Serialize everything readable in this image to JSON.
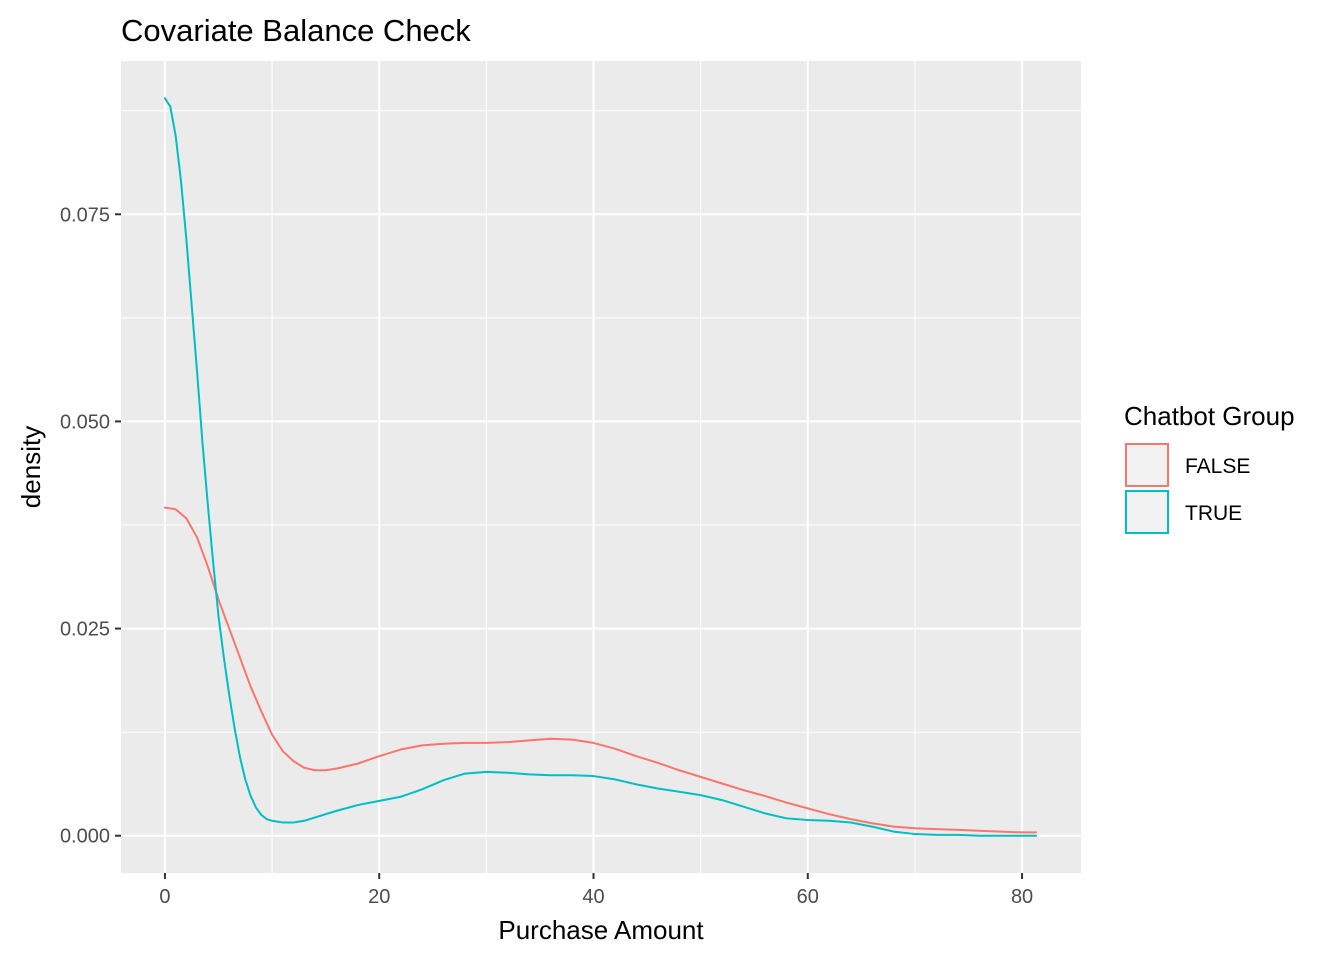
{
  "chart_data": {
    "type": "line",
    "title": "Covariate Balance Check",
    "xlabel": "Purchase Amount",
    "ylabel": "density",
    "xlim": [
      -4.1,
      85.5
    ],
    "ylim": [
      -0.0045,
      0.0935
    ],
    "x_ticks": [
      0,
      20,
      40,
      60,
      80
    ],
    "y_ticks": [
      0.0,
      0.025,
      0.05,
      0.075
    ],
    "x_tick_labels": [
      "0",
      "20",
      "40",
      "60",
      "80"
    ],
    "y_tick_labels": [
      "0.000",
      "0.025",
      "0.050",
      "0.075"
    ],
    "grid": true,
    "legend": {
      "title": "Chatbot Group",
      "position": "right"
    },
    "series": [
      {
        "name": "FALSE",
        "color": "#F8766D",
        "x": [
          0,
          1,
          2,
          3,
          4,
          5,
          6,
          7,
          8,
          9,
          10,
          11,
          12,
          13,
          14,
          15,
          16,
          18,
          20,
          22,
          24,
          26,
          28,
          30,
          32,
          34,
          36,
          38,
          40,
          42,
          44,
          46,
          48,
          50,
          52,
          54,
          56,
          58,
          60,
          62,
          64,
          66,
          68,
          70,
          72,
          74,
          76,
          78,
          80,
          81.3
        ],
        "y": [
          0.0396,
          0.0394,
          0.0383,
          0.036,
          0.0325,
          0.0285,
          0.025,
          0.0215,
          0.018,
          0.015,
          0.0122,
          0.0102,
          0.009,
          0.0082,
          0.0079,
          0.0079,
          0.0081,
          0.0087,
          0.0096,
          0.0104,
          0.0109,
          0.0111,
          0.0112,
          0.0112,
          0.0113,
          0.0115,
          0.0117,
          0.0116,
          0.0112,
          0.0105,
          0.0096,
          0.0088,
          0.0079,
          0.0071,
          0.0063,
          0.0055,
          0.0048,
          0.004,
          0.0033,
          0.0026,
          0.002,
          0.0015,
          0.0011,
          0.0009,
          0.0008,
          0.0007,
          0.0006,
          0.0005,
          0.0004,
          0.0004
        ]
      },
      {
        "name": "TRUE",
        "color": "#00BFC4",
        "x": [
          0,
          0.5,
          1,
          1.5,
          2,
          2.5,
          3,
          3.5,
          4,
          4.5,
          5,
          5.5,
          6,
          6.5,
          7,
          7.5,
          8,
          8.5,
          9,
          9.5,
          10,
          11,
          12,
          13,
          14,
          16,
          18,
          20,
          22,
          24,
          26,
          28,
          30,
          32,
          34,
          36,
          38,
          40,
          42,
          44,
          46,
          48,
          50,
          52,
          54,
          56,
          58,
          60,
          62,
          64,
          66,
          68,
          70,
          72,
          74,
          76,
          78,
          80,
          81.3
        ],
        "y": [
          0.089,
          0.088,
          0.0845,
          0.079,
          0.072,
          0.064,
          0.056,
          0.0475,
          0.04,
          0.033,
          0.0265,
          0.0215,
          0.017,
          0.013,
          0.0095,
          0.0068,
          0.0048,
          0.0034,
          0.0025,
          0.002,
          0.0018,
          0.0016,
          0.0016,
          0.0018,
          0.0022,
          0.003,
          0.0037,
          0.0042,
          0.0047,
          0.0056,
          0.0067,
          0.0075,
          0.0077,
          0.0076,
          0.0074,
          0.0073,
          0.0073,
          0.0072,
          0.0068,
          0.0062,
          0.0057,
          0.0053,
          0.0049,
          0.0043,
          0.0035,
          0.0027,
          0.0021,
          0.0019,
          0.0018,
          0.0016,
          0.0011,
          0.0005,
          0.0002,
          0.0001,
          0.0001,
          0.0,
          0.0,
          0.0,
          0.0
        ]
      }
    ]
  }
}
